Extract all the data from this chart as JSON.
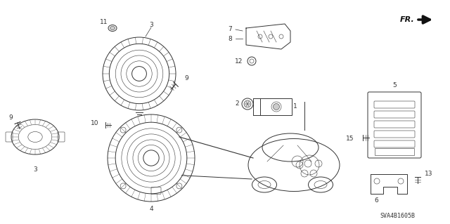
{
  "bg_color": "#ffffff",
  "diagram_code": "SVA4B1605B",
  "line_color": "#333333",
  "label_fontsize": 6.5,
  "small_fontsize": 5.5,
  "diagram_text_fontsize": 6
}
